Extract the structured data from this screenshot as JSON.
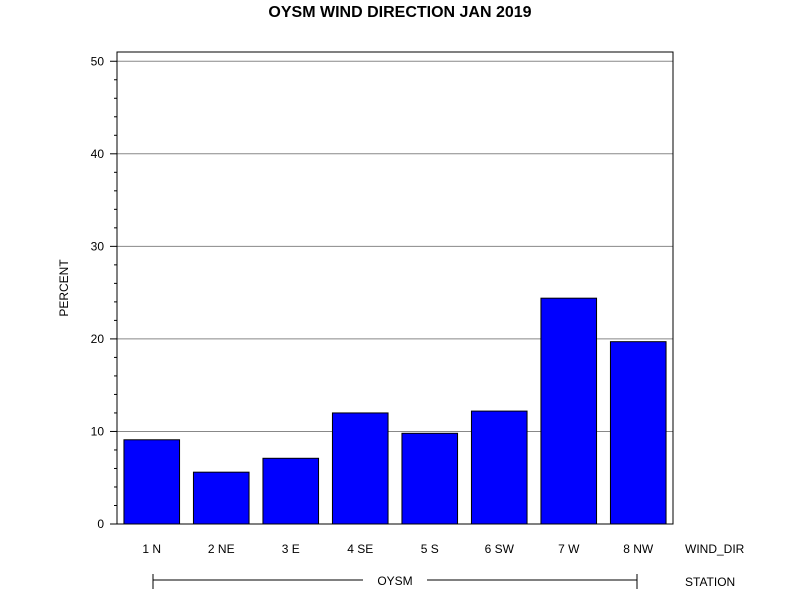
{
  "chart_data": {
    "type": "bar",
    "title": "OYSM WIND DIRECTION JAN 2019",
    "ylabel": "PERCENT",
    "xlabel": "WIND_DIR",
    "group_axis_label": "STATION",
    "group_name": "OYSM",
    "categories": [
      "1 N",
      "2 NE",
      "3 E",
      "4 SE",
      "5 S",
      "6 SW",
      "7 W",
      "8 NW"
    ],
    "series": [
      {
        "values": [
          9.1,
          5.6,
          7.1,
          12.0,
          9.8,
          12.2,
          24.4,
          19.7
        ]
      }
    ],
    "ylim": [
      0,
      51
    ],
    "yticks": [
      0,
      10,
      20,
      30,
      40,
      50
    ],
    "grid": true,
    "bar_color": "#0000ff",
    "bar_outline": "#000000"
  }
}
